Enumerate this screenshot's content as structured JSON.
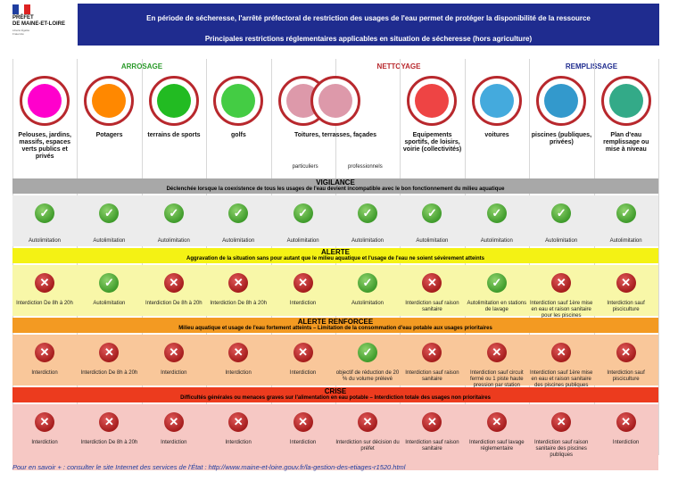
{
  "logo": {
    "line1": "PRÉFET",
    "line2": "DE MAINE-ET-LOIRE",
    "motto": "Liberté Égalité Fraternité"
  },
  "banner": {
    "line1": "En période de sécheresse, l'arrêté préfectoral de restriction des usages de l'eau permet de protéger la disponibilité de la ressource",
    "line2": "Principales restrictions réglementaires applicables en situation de sécheresse (hors agriculture)"
  },
  "categories": {
    "arrosage": "ARROSAGE",
    "nettoyage": "NETTOYAGE",
    "remplissage": "REMPLISSAGE"
  },
  "columns": [
    "Pelouses, jardins, massifs, espaces verts publics et privés",
    "Potagers",
    "terrains de sports",
    "golfs",
    "Toitures, terrasses, façades",
    "",
    "Equipements sportifs, de loisirs, voirie (collectivités)",
    "voitures",
    "piscines (publiques, privées)",
    "Plan d'eau remplissage ou mise à niveau"
  ],
  "sublabels": {
    "particuliers": "particuliers",
    "professionnels": "professionnels"
  },
  "levels": [
    {
      "name": "VIGILANCE",
      "desc": "Déclenchée lorsque la coexistence de tous les usages de l'eau devient incompatible avec le bon fonctionnement du milieu aquatique",
      "colors": {
        "head": "#a8a8a8",
        "band": "#ececec"
      },
      "cells": [
        {
          "status": "ok",
          "text": "Autolimitation"
        },
        {
          "status": "ok",
          "text": "Autolimitation"
        },
        {
          "status": "ok",
          "text": "Autolimitation"
        },
        {
          "status": "ok",
          "text": "Autolimitation"
        },
        {
          "status": "ok",
          "text": "Autolimitation"
        },
        {
          "status": "ok",
          "text": "Autolimitation"
        },
        {
          "status": "ok",
          "text": "Autolimitation"
        },
        {
          "status": "ok",
          "text": "Autolimitation"
        },
        {
          "status": "ok",
          "text": "Autolimitation"
        },
        {
          "status": "ok",
          "text": "Autolimitation"
        }
      ]
    },
    {
      "name": "ALERTE",
      "desc": "Aggravation de la situation sans pour autant que le milieu aquatique et l'usage de l'eau ne soient sévèrement atteints",
      "colors": {
        "head": "#f4f214",
        "band": "#f8f7a8"
      },
      "cells": [
        {
          "status": "no",
          "text": "Interdiction De 8h à 20h"
        },
        {
          "status": "ok",
          "text": "Autolimitation"
        },
        {
          "status": "no",
          "text": "Interdiction De 8h à 20h"
        },
        {
          "status": "no",
          "text": "Interdiction De 8h à 20h"
        },
        {
          "status": "no",
          "text": "Interdiction"
        },
        {
          "status": "ok",
          "text": "Autolimitation"
        },
        {
          "status": "no",
          "text": "Interdiction sauf raison sanitaire"
        },
        {
          "status": "ok",
          "text": "Autolimitation en stations de lavage"
        },
        {
          "status": "no",
          "text": "Interdiction sauf 1ère mise en eau et raison sanitaire pour les piscines publiques"
        },
        {
          "status": "no",
          "text": "Interdiction sauf pisciculture"
        }
      ]
    },
    {
      "name": "ALERTE RENFORCEE",
      "desc": "Milieu aquatique et usage de l'eau fortement atteints – Limitation de la consommation d'eau potable aux usages prioritaires",
      "colors": {
        "head": "#f39a22",
        "band": "#f9c79a"
      },
      "cells": [
        {
          "status": "no",
          "text": "Interdiction"
        },
        {
          "status": "no",
          "text": "Interdiction De 8h à 20h"
        },
        {
          "status": "no",
          "text": "Interdiction"
        },
        {
          "status": "no",
          "text": "Interdiction"
        },
        {
          "status": "no",
          "text": "Interdiction"
        },
        {
          "status": "ok",
          "text": "objectif de réduction de 20 % du volume prélevé"
        },
        {
          "status": "no",
          "text": "Interdiction sauf raison sanitaire"
        },
        {
          "status": "no",
          "text": "Interdiction sauf circuit fermé ou 1 piste haute pression par station"
        },
        {
          "status": "no",
          "text": "Interdiction sauf 1ère mise en eau et raison sanitaire des piscines publiques"
        },
        {
          "status": "no",
          "text": "Interdiction sauf pisciculture"
        }
      ]
    },
    {
      "name": "CRISE",
      "desc": "Difficultés générales ou menaces graves sur l'alimentation en eau potable – Interdiction totale des usages non prioritaires",
      "colors": {
        "head": "#ec3b1e",
        "band": "#f6c8c4"
      },
      "cells": [
        {
          "status": "no",
          "text": "Interdiction"
        },
        {
          "status": "no",
          "text": "Interdiction De 8h à 20h"
        },
        {
          "status": "no",
          "text": "Interdiction"
        },
        {
          "status": "no",
          "text": "Interdiction"
        },
        {
          "status": "no",
          "text": "Interdiction"
        },
        {
          "status": "no",
          "text": "Interdiction sur décision du préfet"
        },
        {
          "status": "no",
          "text": "Interdiction sauf raison sanitaire"
        },
        {
          "status": "no",
          "text": "Interdiction sauf lavage réglementaire"
        },
        {
          "status": "no",
          "text": "Interdiction sauf raison sanitaire des piscines publiques"
        },
        {
          "status": "no",
          "text": "Interdiction"
        }
      ]
    }
  ],
  "icons": [
    "flowers-icon",
    "carrots-icon",
    "sports-field-icon",
    "golf-icon",
    "house-icon",
    "house-icon",
    "lawnmower-icon",
    "car-wash-icon",
    "pool-icon",
    "pond-icon"
  ],
  "footer": "Pour en savoir + : consulter le site Internet des services de l'État : http://www.maine-et-loire.gouv.fr/la-gestion-des-etiages-r1520.html",
  "colors": {
    "banner": "#1f2c8f",
    "arrosage": "#2a9a2a",
    "nettoyage": "#b8282d",
    "remplissage": "#1f2c8f",
    "ok": "#3f9b2b",
    "no": "#a51c1c"
  }
}
